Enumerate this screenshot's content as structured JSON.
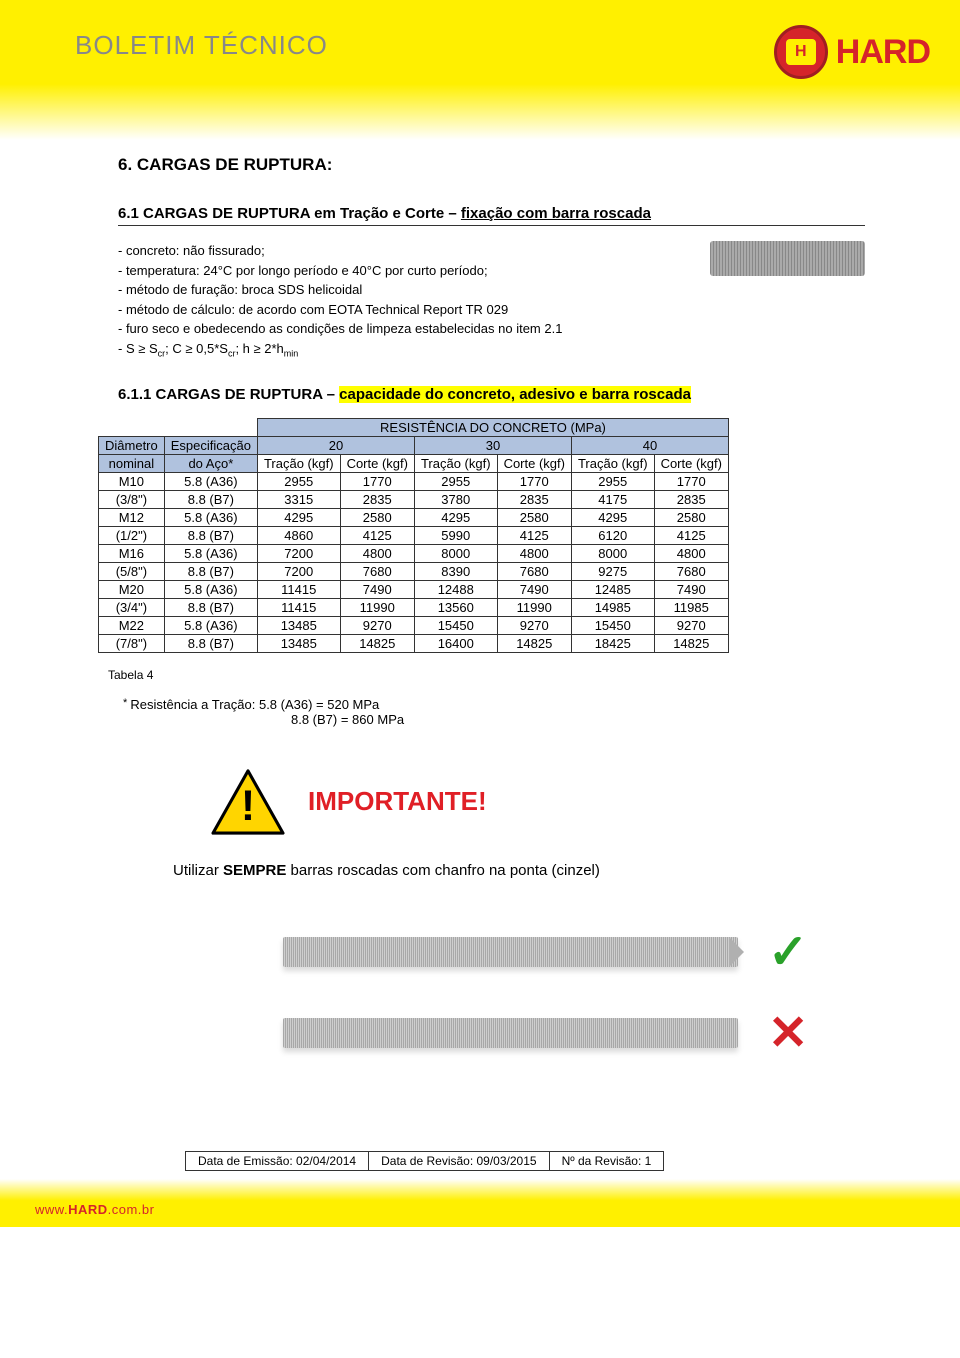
{
  "header": {
    "title": "BOLETIM TÉCNICO",
    "brand": "HARD"
  },
  "section": {
    "num_title": "6. CARGAS DE RUPTURA:",
    "sub_title_prefix": "6.1 CARGAS DE RUPTURA em Tração e Corte – ",
    "sub_title_underline": "fixação com barra roscada",
    "specs": [
      "- concreto: não fissurado;",
      "- temperatura: 24°C por longo período e 40°C por curto período;",
      "- método de furação: broca SDS helicoidal",
      "- método de cálculo: de acordo com EOTA Technical Report  TR 029",
      "- furo seco e obedecendo as condições de limpeza estabelecidas no item 2.1"
    ],
    "spec_formula": "- S ≥ Scr; C ≥ 0,5*Scr; h ≥ 2*hmin",
    "sub_611_prefix": "6.1.1 CARGAS DE RUPTURA – ",
    "sub_611_highlight": "capacidade do concreto, adesivo e barra roscada"
  },
  "table": {
    "group_header": "RESISTÊNCIA DO CONCRETO (MPa)",
    "col_group_labels": [
      "20",
      "30",
      "40"
    ],
    "left_headers_r1": [
      "Diâmetro",
      "Especificação"
    ],
    "left_headers_r2": [
      "nominal",
      "do Aço*"
    ],
    "sub_headers": [
      "Tração (kgf)",
      "Corte (kgf)",
      "Tração (kgf)",
      "Corte (kgf)",
      "Tração (kgf)",
      "Corte (kgf)"
    ],
    "rows": [
      [
        "M10",
        "5.8 (A36)",
        "2955",
        "1770",
        "2955",
        "1770",
        "2955",
        "1770"
      ],
      [
        "(3/8\")",
        "8.8 (B7)",
        "3315",
        "2835",
        "3780",
        "2835",
        "4175",
        "2835"
      ],
      [
        "M12",
        "5.8 (A36)",
        "4295",
        "2580",
        "4295",
        "2580",
        "4295",
        "2580"
      ],
      [
        "(1/2\")",
        "8.8 (B7)",
        "4860",
        "4125",
        "5990",
        "4125",
        "6120",
        "4125"
      ],
      [
        "M16",
        "5.8 (A36)",
        "7200",
        "4800",
        "8000",
        "4800",
        "8000",
        "4800"
      ],
      [
        "(5/8\")",
        "8.8 (B7)",
        "7200",
        "7680",
        "8390",
        "7680",
        "9275",
        "7680"
      ],
      [
        "M20",
        "5.8 (A36)",
        "11415",
        "7490",
        "12488",
        "7490",
        "12485",
        "7490"
      ],
      [
        "(3/4\")",
        "8.8 (B7)",
        "11415",
        "11990",
        "13560",
        "11990",
        "14985",
        "11985"
      ],
      [
        "M22",
        "5.8 (A36)",
        "13485",
        "9270",
        "15450",
        "9270",
        "15450",
        "9270"
      ],
      [
        "(7/8\")",
        "8.8 (B7)",
        "13485",
        "14825",
        "16400",
        "14825",
        "18425",
        "14825"
      ]
    ],
    "caption": "Tabela 4",
    "footnote_line1": "Resistência a Tração: 5.8 (A36) = 520 MPa",
    "footnote_line2": "8.8 (B7) = 860 MPa",
    "colors": {
      "header_bg": "#b0c2de",
      "border": "#333333",
      "highlight_bg": "#ffff00"
    }
  },
  "important": {
    "label": "IMPORTANTE!",
    "usage_prefix": "Utilizar ",
    "usage_bold": "SEMPRE",
    "usage_suffix": " barras roscadas com chanfro na ponta (cinzel)"
  },
  "footer": {
    "emissao": "Data de Emissão: 02/04/2014",
    "revisao": "Data de Revisão: 09/03/2015",
    "num_revisao": "Nº da Revisão: 1",
    "url_prefix": "www.",
    "url_bold": "HARD",
    "url_suffix": ".com.br"
  }
}
